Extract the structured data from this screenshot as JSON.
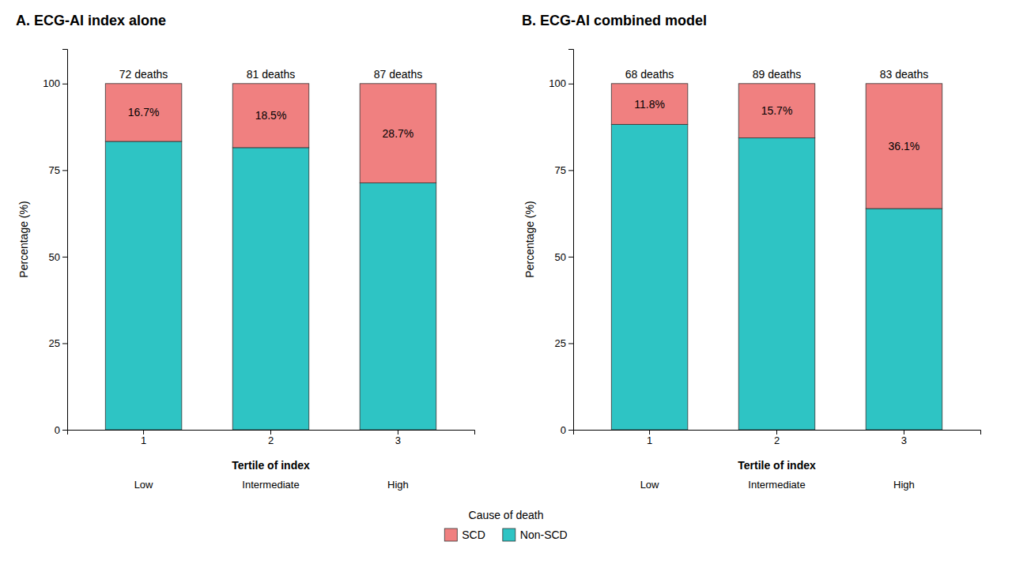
{
  "chart_data": [
    {
      "type": "bar",
      "title": "A. ECG-AI index alone",
      "categories": [
        "1",
        "2",
        "3"
      ],
      "subcategories": [
        "Low",
        "Intermediate",
        "High"
      ],
      "xlabel": "Tertile of index",
      "ylabel": "Percentage (%)",
      "annotations": [
        "72 deaths",
        "81 deaths",
        "87 deaths"
      ],
      "series": [
        {
          "name": "Non-SCD",
          "color": "#2EC4C4",
          "values": [
            83.3,
            81.5,
            71.3
          ]
        },
        {
          "name": "SCD",
          "color": "#F08080",
          "values": [
            16.7,
            18.5,
            28.7
          ],
          "value_labels": [
            "16.7%",
            "18.5%",
            "28.7%"
          ],
          "data_labels": true
        }
      ],
      "stacked": true,
      "ylim": [
        0,
        110
      ],
      "yticks": [
        0,
        25,
        50,
        75,
        100
      ],
      "grid": false,
      "legend": "bottom",
      "legend_title": "Cause of death"
    },
    {
      "type": "bar",
      "title": "B. ECG-AI combined model",
      "categories": [
        "1",
        "2",
        "3"
      ],
      "subcategories": [
        "Low",
        "Intermediate",
        "High"
      ],
      "xlabel": "Tertile of index",
      "ylabel": "Percentage (%)",
      "annotations": [
        "68 deaths",
        "89 deaths",
        "83 deaths"
      ],
      "series": [
        {
          "name": "Non-SCD",
          "color": "#2EC4C4",
          "values": [
            88.2,
            84.3,
            63.9
          ]
        },
        {
          "name": "SCD",
          "color": "#F08080",
          "values": [
            11.8,
            15.7,
            36.1
          ],
          "value_labels": [
            "11.8%",
            "15.7%",
            "36.1%"
          ],
          "data_labels": true
        }
      ],
      "stacked": true,
      "ylim": [
        0,
        110
      ],
      "yticks": [
        0,
        25,
        50,
        75,
        100
      ],
      "grid": false
    }
  ]
}
